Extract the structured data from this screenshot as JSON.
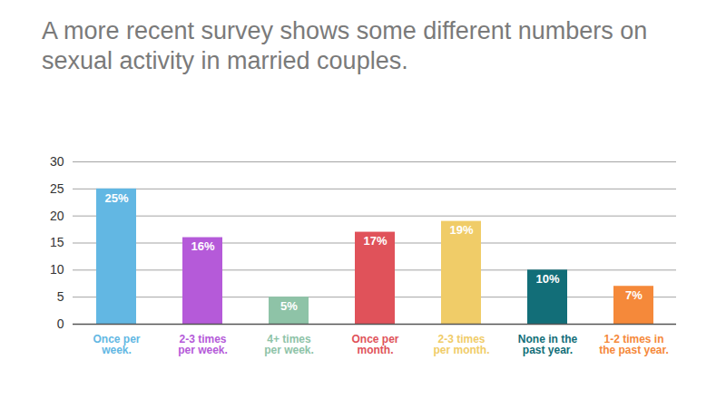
{
  "chart_data": {
    "type": "bar",
    "title": "A more recent survey shows some different numbers on sexual activity in married couples.",
    "categories": [
      "Once per week.",
      "2-3 times per week.",
      "4+ times per week.",
      "Once per month.",
      "2-3 times per month.",
      "None in the past year.",
      "1-2 times in the past year."
    ],
    "values": [
      25,
      16,
      5,
      17,
      19,
      10,
      7
    ],
    "value_labels": [
      "25%",
      "16%",
      "5%",
      "17%",
      "19%",
      "10%",
      "7%"
    ],
    "colors": [
      "#62b7e3",
      "#b55ad9",
      "#8ec3a7",
      "#e0525a",
      "#f0cc68",
      "#126e78",
      "#f5893a"
    ],
    "ylim": [
      0,
      30
    ],
    "yticks": [
      0,
      5,
      10,
      15,
      20,
      25,
      30
    ],
    "grid": true,
    "data_labels": true
  }
}
